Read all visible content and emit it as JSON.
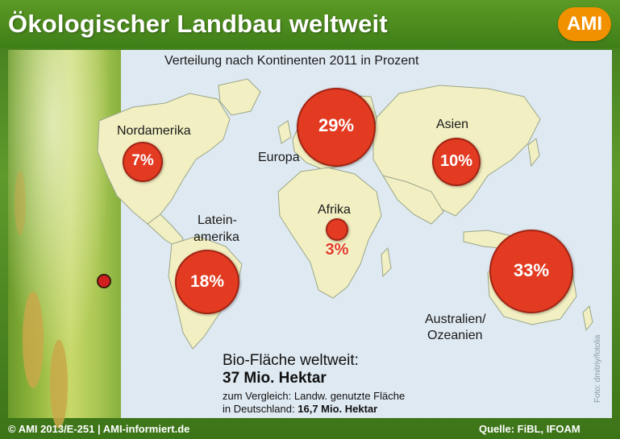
{
  "header": {
    "title": "Ökologischer Landbau weltweit",
    "logo_text": "AMI"
  },
  "map": {
    "subtitle": "Verteilung nach Kontinenten 2011 in Prozent",
    "land_color": "#f2efc2",
    "water_color": "#dfe9f1",
    "bubble_color": "#e23b22"
  },
  "continents": [
    {
      "name": "Nordamerika",
      "value": "7%"
    },
    {
      "name": "Europa",
      "value": "29%"
    },
    {
      "name": "Asien",
      "value": "10%"
    },
    {
      "name": "Afrika",
      "value": "3%"
    },
    {
      "name_line1": "Latein-",
      "name_line2": "amerika",
      "value": "18%"
    },
    {
      "name_line1": "Australien/",
      "name_line2": "Ozeanien",
      "value": "33%"
    }
  ],
  "info": {
    "line1": "Bio-Fläche weltweit:",
    "line2": "37 Mio. Hektar",
    "line3": "zum Vergleich: Landw. genutzte Fläche",
    "line4_prefix": "in Deutschland:",
    "line4_value": "16,7 Mio. Hektar"
  },
  "photo_credit": "Foto: dmitriy/fotolia",
  "footer": {
    "left": "© AMI 2013/E-251 | AMI-informiert.de",
    "right": "Quelle: FiBL, IFOAM"
  }
}
